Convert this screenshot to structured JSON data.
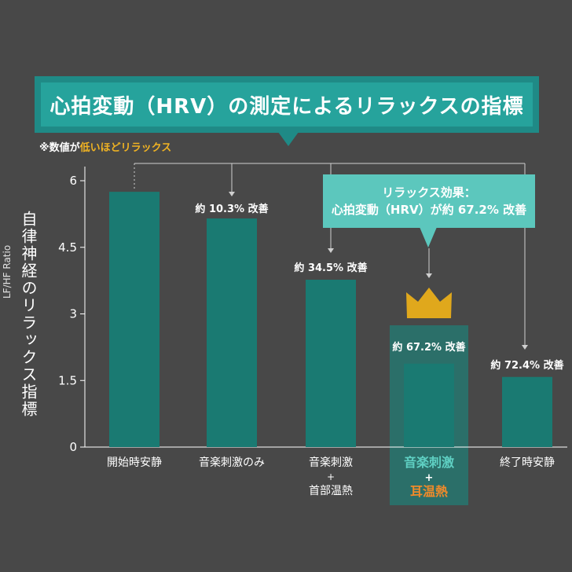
{
  "title": "心拍変動（HRV）の測定によるリラックスの指標",
  "note": {
    "prefix": "※数値が",
    "highlight": "低いほどリラックス"
  },
  "y_axis": {
    "label": "自律神経のリラックス指標",
    "sublabel": "LF/HF Ratio"
  },
  "callout": {
    "line1": "リラックス効果：",
    "line2": "心拍変動（HRV）が約 67.2% 改善"
  },
  "colors": {
    "background": "#484848",
    "bar": "#1a7a72",
    "highlight_box": "#2b6f69",
    "crown": "#e0a81c",
    "orange": "#f08a2a",
    "teal_text": "#5fd0c3"
  },
  "chart_data": {
    "type": "bar",
    "title": "心拍変動（HRV）の測定によるリラックスの指標",
    "ylabel": "自律神経のリラックス指標 LF/HF Ratio",
    "ylim": [
      0,
      6
    ],
    "yticks": [
      0,
      1.5,
      3,
      4.5,
      6
    ],
    "ytick_labels": [
      "0",
      "1.5",
      "3",
      "4.5",
      "6"
    ],
    "grid": false,
    "categories": [
      {
        "lines": [
          "開始時安静"
        ],
        "highlight": false
      },
      {
        "lines": [
          "音楽刺激のみ"
        ],
        "highlight": false
      },
      {
        "lines": [
          "音楽刺激",
          "+",
          "首部温熱"
        ],
        "highlight": false
      },
      {
        "lines": [
          "音楽刺激",
          "+",
          "耳温熱"
        ],
        "highlight": true
      },
      {
        "lines": [
          "終了時安静"
        ],
        "highlight": false
      }
    ],
    "values": [
      5.75,
      5.15,
      3.77,
      1.88,
      1.58
    ],
    "annotations": [
      "",
      "約 10.3% 改善",
      "約 34.5% 改善",
      "約 67.2% 改善",
      "約 72.4% 改善"
    ]
  }
}
